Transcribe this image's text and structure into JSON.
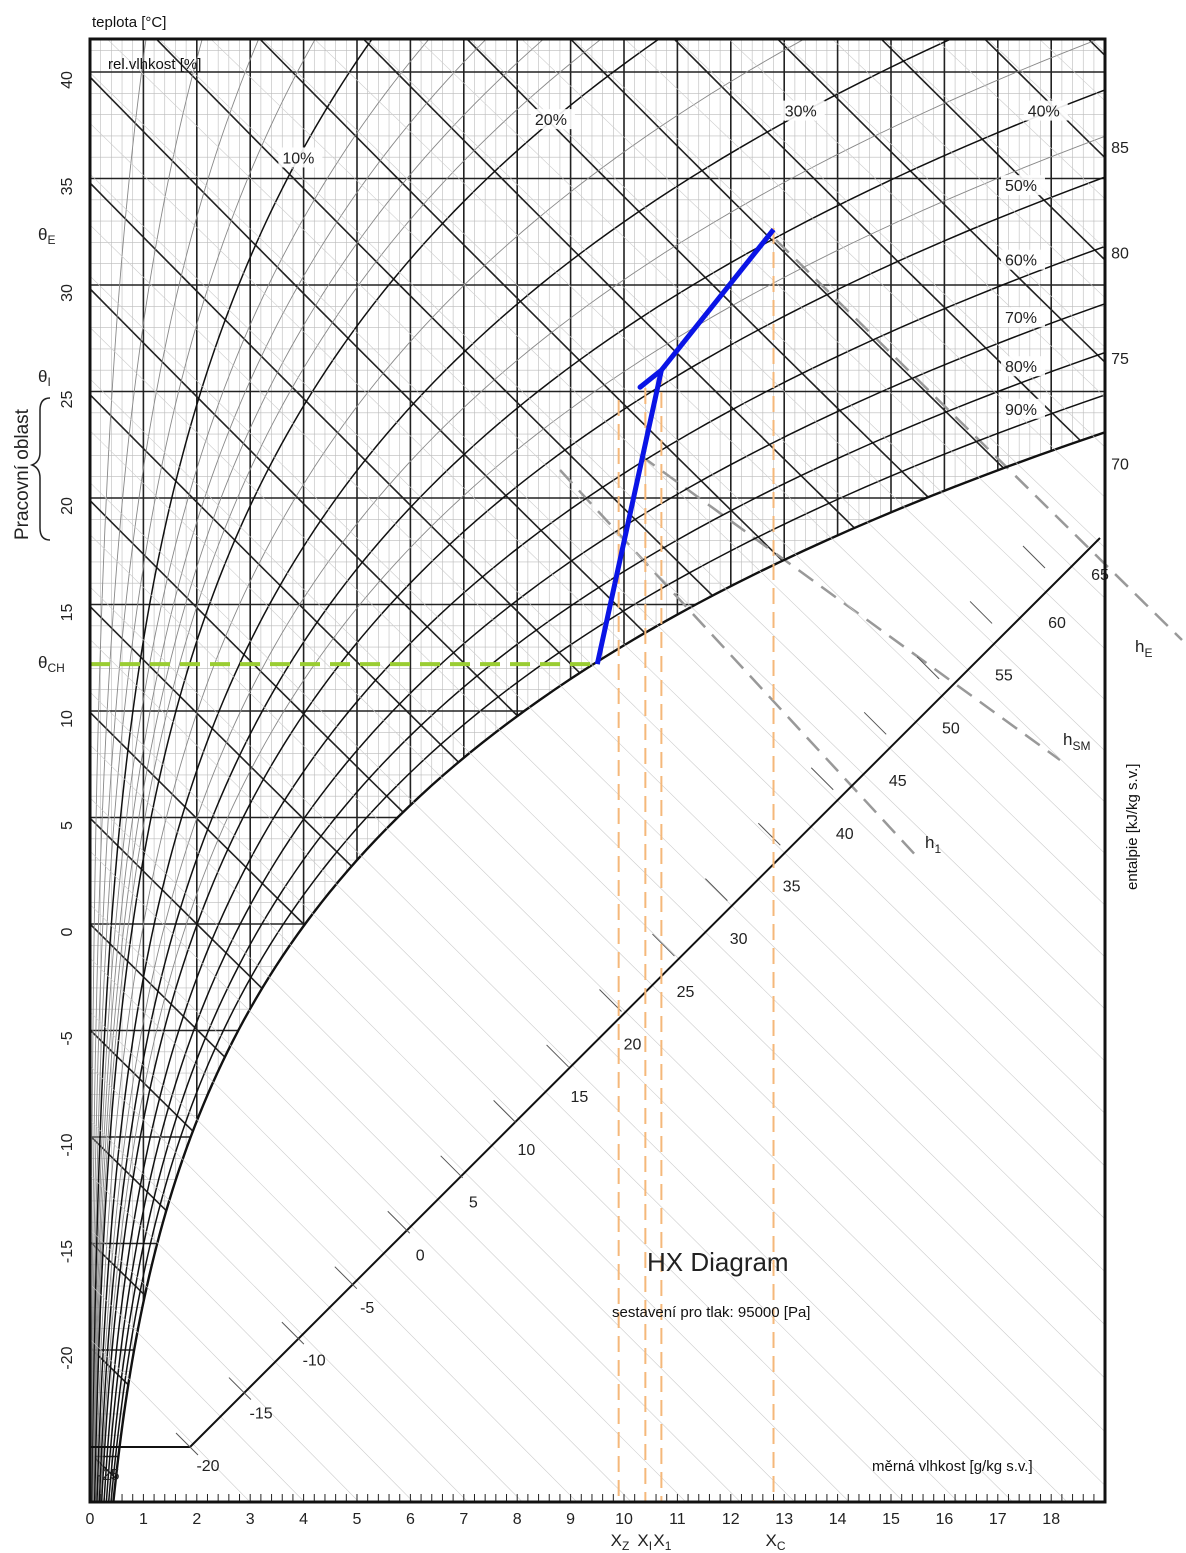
{
  "chart_data": {
    "type": "line",
    "title": "HX Diagram",
    "subtitle": "sestavení pro tlak: 95000 [Pa]",
    "xlabel": "měrná vlhkost [g/kg s.v.]",
    "ylabel": "teplota [°C]",
    "y2label": "entalpie [kJ/kg s.v.]",
    "rh_title": "rel.vlhkost [%]",
    "xlim": [
      0,
      19
    ],
    "ylim": [
      -28,
      42
    ],
    "grid": true,
    "x_ticks": [
      "0",
      "1",
      "2",
      "3",
      "4",
      "5",
      "6",
      "7",
      "8",
      "9",
      "10",
      "11",
      "12",
      "13",
      "14",
      "15",
      "16",
      "17",
      "18"
    ],
    "y_ticks": [
      "40",
      "35",
      "30",
      "25",
      "20",
      "15",
      "10",
      "5",
      "0",
      "-5",
      "-10",
      "-15",
      "-20"
    ],
    "rh_labels": [
      "10%",
      "20%",
      "30%",
      "40%",
      "50%",
      "60%",
      "70%",
      "80%",
      "90%"
    ],
    "enthalpy_ticks": [
      "-25",
      "-20",
      "-15",
      "-10",
      "-5",
      "0",
      "5",
      "10",
      "15",
      "20",
      "25",
      "30",
      "35",
      "40",
      "45",
      "50",
      "55",
      "60",
      "65",
      "70",
      "75",
      "80",
      "85"
    ],
    "enthalpy_lines": [
      {
        "name": "h_E",
        "sub": "E"
      },
      {
        "name": "h_SM",
        "sub": "SM"
      },
      {
        "name": "h_1",
        "sub": "1"
      }
    ],
    "process_line": {
      "color": "#0a14e6",
      "points": [
        {
          "x": 9.5,
          "y": 12.2
        },
        {
          "x": 10.7,
          "y": 26.0
        },
        {
          "x": 10.3,
          "y": 25.2
        },
        {
          "x": 10.7,
          "y": 26.0
        },
        {
          "x": 12.8,
          "y": 32.6
        }
      ]
    },
    "dew_line": {
      "color": "#9acd32",
      "y": 12.2,
      "x_from": 0,
      "x_to": 9.5
    },
    "x_markers": [
      {
        "label": "X",
        "sub": "Z",
        "x": 9.9
      },
      {
        "label": "X",
        "sub": "I",
        "x": 10.4
      },
      {
        "label": "X",
        "sub": "1",
        "x": 10.7
      },
      {
        "label": "X",
        "sub": "C",
        "x": 12.8
      }
    ],
    "y_markers": [
      {
        "label": "θ",
        "sub": "E",
        "y": 32.6
      },
      {
        "label": "θ",
        "sub": "I",
        "y": 25.5
      },
      {
        "label": "θ",
        "sub": "CH",
        "y": 12.2
      }
    ],
    "band_label": "Pracovní oblast",
    "colors": {
      "process": "#0a14e6",
      "dew": "#9acd32",
      "markers": "#f5b87a",
      "grid": "#222222"
    }
  }
}
